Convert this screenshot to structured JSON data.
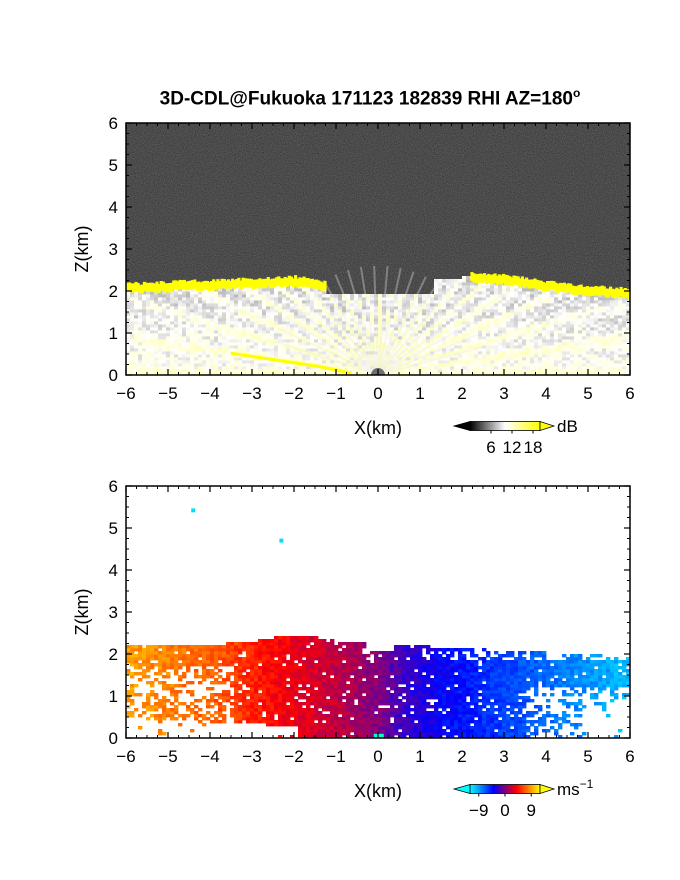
{
  "title": "3D-CDL@Fukuoka 171123 182839 RHI AZ=180",
  "title_sup": "o",
  "chart_data": [
    {
      "type": "heatmap",
      "panel": "backscatter",
      "xlabel": "X(km)",
      "ylabel": "Z(km)",
      "xlim": [
        -6,
        6
      ],
      "ylim": [
        0,
        6
      ],
      "xticks": [
        "-6",
        "-5",
        "-4",
        "-3",
        "-2",
        "-1",
        "0",
        "1",
        "2",
        "3",
        "4",
        "5",
        "6"
      ],
      "yticks": [
        "0",
        "1",
        "2",
        "3",
        "4",
        "5",
        "6"
      ],
      "colorbar": {
        "unit": "dB",
        "ticks": [
          "6",
          "12",
          "18"
        ],
        "tick_values": [
          6,
          12,
          18
        ],
        "range": [
          0,
          20
        ],
        "colors": [
          "#000000",
          "#ffffff",
          "#ffff00"
        ]
      },
      "cloud_layer": [
        {
          "x": -6.0,
          "z": 2.05
        },
        {
          "x": -5.0,
          "z": 2.1
        },
        {
          "x": -4.0,
          "z": 2.13
        },
        {
          "x": -3.0,
          "z": 2.17
        },
        {
          "x": -2.0,
          "z": 2.22
        },
        {
          "x": -1.25,
          "z": 2.1
        },
        {
          "x": 2.2,
          "z": 2.3
        },
        {
          "x": 3.0,
          "z": 2.25
        },
        {
          "x": 4.0,
          "z": 2.1
        },
        {
          "x": 5.0,
          "z": 2.0
        },
        {
          "x": 6.0,
          "z": 1.92
        }
      ],
      "low_echo": [
        {
          "x": -3.5,
          "z": 0.5
        },
        {
          "x": -2.5,
          "z": 0.35
        },
        {
          "x": -1.5,
          "z": 0.2
        },
        {
          "x": -0.7,
          "z": 0.04
        }
      ]
    },
    {
      "type": "heatmap",
      "panel": "doppler_velocity",
      "xlabel": "X(km)",
      "ylabel": "Z(km)",
      "xlim": [
        -6,
        6
      ],
      "ylim": [
        0,
        6
      ],
      "xticks": [
        "-6",
        "-5",
        "-4",
        "-3",
        "-2",
        "-1",
        "0",
        "1",
        "2",
        "3",
        "4",
        "5",
        "6"
      ],
      "yticks": [
        "0",
        "1",
        "2",
        "3",
        "4",
        "5",
        "6"
      ],
      "colorbar": {
        "unit": "ms",
        "unit_sup": "-1",
        "ticks": [
          "-9",
          "0",
          "9"
        ],
        "tick_values": [
          -9,
          0,
          9
        ],
        "range": [
          -12,
          12
        ],
        "colors": [
          "#00ffff",
          "#0000ff",
          "#ff0000",
          "#ffff00"
        ]
      },
      "velocity_profile": [
        {
          "x": -6.0,
          "v": 9
        },
        {
          "x": -4.0,
          "v": 7
        },
        {
          "x": -2.5,
          "v": 4
        },
        {
          "x": -1.0,
          "v": 2
        },
        {
          "x": 0.0,
          "v": 0
        },
        {
          "x": 0.5,
          "v": -2
        },
        {
          "x": 1.5,
          "v": -4
        },
        {
          "x": 3.0,
          "v": -6
        },
        {
          "x": 4.5,
          "v": -8
        },
        {
          "x": 6.0,
          "v": -10
        }
      ],
      "isolated_echoes": [
        {
          "x": -4.4,
          "z": 5.42,
          "v": -11
        },
        {
          "x": -2.3,
          "z": 4.7,
          "v": -11
        }
      ]
    }
  ]
}
